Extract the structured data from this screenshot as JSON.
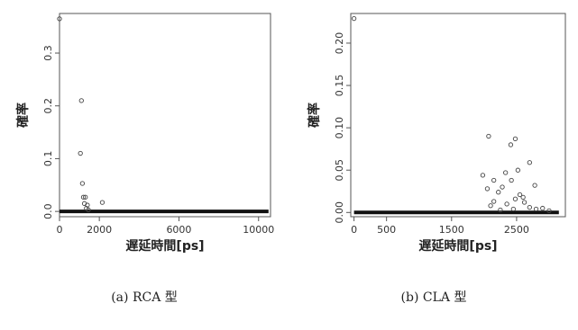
{
  "chart_data": [
    {
      "type": "scatter",
      "caption": "(a) RCA 型",
      "xlabel": "遅延時間[ps]",
      "ylabel": "確率",
      "xlim": [
        0,
        10600
      ],
      "ylim": [
        -0.01,
        0.375
      ],
      "xticks": [
        0,
        2000,
        6000,
        10000
      ],
      "xtick_labels": [
        "0",
        "2000",
        "6000",
        "10000"
      ],
      "yticks": [
        0.0,
        0.1,
        0.2,
        0.3
      ],
      "ytick_labels": [
        "0.0",
        "0.1",
        "0.2",
        "0.3"
      ],
      "baseline": {
        "x_start": 0,
        "x_end": 10500,
        "y": 0.0
      },
      "points": [
        {
          "x": 0,
          "y": 0.365
        },
        {
          "x": 1100,
          "y": 0.21
        },
        {
          "x": 1050,
          "y": 0.11
        },
        {
          "x": 1150,
          "y": 0.053
        },
        {
          "x": 1200,
          "y": 0.027
        },
        {
          "x": 1300,
          "y": 0.027
        },
        {
          "x": 1250,
          "y": 0.015
        },
        {
          "x": 1400,
          "y": 0.012
        },
        {
          "x": 1350,
          "y": 0.006
        },
        {
          "x": 1450,
          "y": 0.003
        },
        {
          "x": 2150,
          "y": 0.017
        }
      ]
    },
    {
      "type": "scatter",
      "caption": "(b) CLA 型",
      "xlabel": "遅延時間[ps]",
      "ylabel": "確率",
      "xlim": [
        -50,
        3250
      ],
      "ylim": [
        -0.005,
        0.235
      ],
      "xticks": [
        0,
        500,
        1500,
        2500
      ],
      "xtick_labels": [
        "0",
        "500",
        "1500",
        "2500"
      ],
      "yticks": [
        0.0,
        0.05,
        0.1,
        0.15,
        0.2
      ],
      "ytick_labels": [
        "0.00",
        "0.05",
        "0.10",
        "0.15",
        "0.20"
      ],
      "baseline": {
        "x_start": 0,
        "x_end": 3150,
        "y": 0.0
      },
      "points": [
        {
          "x": 0,
          "y": 0.229
        },
        {
          "x": 2070,
          "y": 0.09
        },
        {
          "x": 2480,
          "y": 0.087
        },
        {
          "x": 2410,
          "y": 0.08
        },
        {
          "x": 2700,
          "y": 0.059
        },
        {
          "x": 2330,
          "y": 0.047
        },
        {
          "x": 2520,
          "y": 0.05
        },
        {
          "x": 1980,
          "y": 0.044
        },
        {
          "x": 2150,
          "y": 0.038
        },
        {
          "x": 2420,
          "y": 0.038
        },
        {
          "x": 2780,
          "y": 0.032
        },
        {
          "x": 2050,
          "y": 0.028
        },
        {
          "x": 2280,
          "y": 0.03
        },
        {
          "x": 2220,
          "y": 0.024
        },
        {
          "x": 2550,
          "y": 0.021
        },
        {
          "x": 2600,
          "y": 0.018
        },
        {
          "x": 2480,
          "y": 0.016
        },
        {
          "x": 2150,
          "y": 0.013
        },
        {
          "x": 2620,
          "y": 0.012
        },
        {
          "x": 2350,
          "y": 0.01
        },
        {
          "x": 2100,
          "y": 0.008
        },
        {
          "x": 2900,
          "y": 0.005
        },
        {
          "x": 2800,
          "y": 0.004
        },
        {
          "x": 2250,
          "y": 0.003
        },
        {
          "x": 2450,
          "y": 0.004
        },
        {
          "x": 2700,
          "y": 0.006
        },
        {
          "x": 3000,
          "y": 0.002
        }
      ]
    }
  ]
}
